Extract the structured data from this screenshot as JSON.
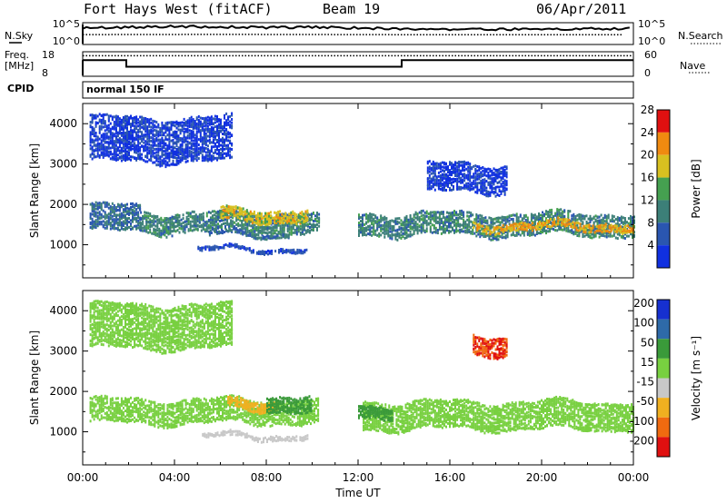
{
  "header": {
    "station": "Fort Hays West (fitACF)",
    "beam": "Beam 19",
    "date": "06/Apr/2011"
  },
  "noise_panel": {
    "left_label": "N.Sky",
    "right_label": "N.Search",
    "left_ticks": [
      "10^5",
      "10^0"
    ],
    "right_ticks": [
      "10^5",
      "10^0"
    ]
  },
  "freq_panel": {
    "left_label_line1": "Freq.",
    "left_label_line2": "[MHz]",
    "right_label": "Nave",
    "left_ticks": [
      "18",
      "8"
    ],
    "right_ticks": [
      "60",
      "0"
    ]
  },
  "cpid": {
    "label": "CPID",
    "value": "normal 150 IF"
  },
  "x_axis": {
    "title": "Time UT",
    "ticks": [
      "00:00",
      "04:00",
      "08:00",
      "12:00",
      "16:00",
      "20:00",
      "00:00"
    ]
  },
  "y_axis": {
    "title": "Slant Range [km]",
    "ticks": [
      "1000",
      "2000",
      "3000",
      "4000"
    ]
  },
  "power_colorbar": {
    "title": "Power [dB]",
    "ticks": [
      "4",
      "8",
      "12",
      "16",
      "20",
      "24",
      "28"
    ],
    "colors": [
      "#1030e0",
      "#2a56b0",
      "#3c7f78",
      "#45a050",
      "#d8c020",
      "#f08a10",
      "#e01010"
    ]
  },
  "velocity_colorbar": {
    "title": "Velocity [m s⁻¹]",
    "ticks": [
      "200",
      "100",
      "50",
      "15",
      "-15",
      "-50",
      "-100",
      "-200"
    ],
    "colors": [
      "#1630d0",
      "#2e6aa8",
      "#3a9a3a",
      "#78d040",
      "#c8c8c8",
      "#f0b020",
      "#f06a10",
      "#e01010"
    ]
  },
  "chart_data": [
    {
      "type": "heatmap",
      "title": "Power [dB]",
      "xlabel": "Time UT",
      "ylabel": "Slant Range [km]",
      "xlim": [
        "00:00",
        "00:00"
      ],
      "ylim": [
        180,
        4500
      ],
      "zlim": [
        0,
        30
      ],
      "bands": [
        {
          "t_start": 0.3,
          "t_end": 2.5,
          "range_center": 1650,
          "range_width": 650,
          "power": 10
        },
        {
          "t_start": 2.5,
          "t_end": 10.3,
          "range_center": 1550,
          "range_width": 500,
          "power": 12
        },
        {
          "t_start": 6.0,
          "t_end": 9.8,
          "range_center": 1720,
          "range_width": 300,
          "power": 20
        },
        {
          "t_start": 5.5,
          "t_end": 9.0,
          "range_center": 1250,
          "range_width": 80,
          "power": 10
        },
        {
          "t_start": 5.0,
          "t_end": 9.8,
          "range_center": 880,
          "range_width": 100,
          "power": 7
        },
        {
          "t_start": 12.0,
          "t_end": 24.0,
          "range_center": 1500,
          "range_width": 550,
          "power": 12
        },
        {
          "t_start": 17.0,
          "t_end": 24.0,
          "range_center": 1450,
          "range_width": 200,
          "power": 22
        },
        {
          "t_start": 15.0,
          "t_end": 18.5,
          "range_center": 2650,
          "range_width": 700,
          "power": 5
        },
        {
          "t_start": 0.3,
          "t_end": 6.5,
          "range_center": 3600,
          "range_width": 1100,
          "power": 5
        }
      ]
    },
    {
      "type": "heatmap",
      "title": "Velocity [m s⁻¹]",
      "xlabel": "Time UT",
      "ylabel": "Slant Range [km]",
      "xlim": [
        "00:00",
        "00:00"
      ],
      "ylim": [
        180,
        4500
      ],
      "zlim": [
        -200,
        200
      ],
      "bands": [
        {
          "t_start": 0.3,
          "t_end": 10.3,
          "range_center": 1500,
          "range_width": 600,
          "velocity": -5
        },
        {
          "t_start": 6.3,
          "t_end": 8.5,
          "range_center": 1650,
          "range_width": 250,
          "velocity": -60
        },
        {
          "t_start": 8.0,
          "t_end": 10.0,
          "range_center": 1700,
          "range_width": 400,
          "velocity": 40
        },
        {
          "t_start": 5.2,
          "t_end": 9.8,
          "range_center": 880,
          "range_width": 120,
          "velocity": -40
        },
        {
          "t_start": 12.2,
          "t_end": 24.0,
          "range_center": 1400,
          "range_width": 700,
          "velocity": 0
        },
        {
          "t_start": 12.0,
          "t_end": 13.5,
          "range_center": 1500,
          "range_width": 300,
          "velocity": 35
        },
        {
          "t_start": 17.0,
          "t_end": 18.5,
          "range_center": 3150,
          "range_width": 500,
          "velocity": -200
        },
        {
          "t_start": 0.3,
          "t_end": 6.5,
          "range_center": 3600,
          "range_width": 1100,
          "velocity": 0
        }
      ]
    },
    {
      "type": "line",
      "title": "",
      "series": [
        {
          "name": "N.Sky",
          "x": [
            0,
            2,
            4,
            6,
            8,
            10,
            12,
            14,
            16,
            18,
            20,
            22,
            24
          ],
          "y": [
            0.78,
            0.82,
            0.86,
            0.84,
            0.8,
            0.82,
            0.78,
            0.74,
            0.7,
            0.72,
            0.72,
            0.74,
            0.76
          ]
        },
        {
          "name": "N.Search",
          "x": [
            0,
            6,
            12,
            18,
            24
          ],
          "y": [
            0.45,
            0.46,
            0.45,
            0.44,
            0.44
          ]
        }
      ]
    },
    {
      "type": "line",
      "title": "",
      "xlabel": "Time UT",
      "ylabel": "Freq. [MHz]",
      "series": [
        {
          "name": "Freq.",
          "x": [
            0,
            1.9,
            1.9,
            13.9,
            13.9,
            24
          ],
          "y": [
            14.7,
            14.7,
            11.8,
            11.8,
            14.7,
            14.7
          ]
        },
        {
          "name": "Nave",
          "x": [
            0,
            24
          ],
          "y": [
            52,
            52
          ]
        }
      ]
    }
  ]
}
